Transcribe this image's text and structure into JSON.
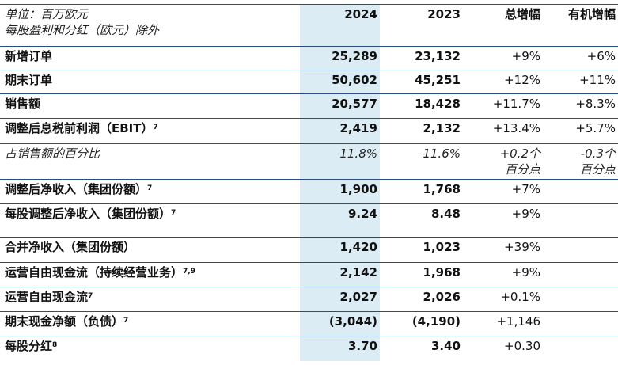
{
  "header": {
    "unit_line1": "单位：百万欧元",
    "unit_line2": "每股盈利和分红（欧元）除外",
    "col_2024": "2024",
    "col_2023": "2023",
    "col_total_growth": "总增幅",
    "col_organic_growth": "有机增幅"
  },
  "rows": [
    {
      "label": "新增订单",
      "sup": "",
      "v2024": "25,289",
      "v2023": "23,132",
      "total": "+9%",
      "organic": "+6%"
    },
    {
      "label": "期末订单",
      "sup": "",
      "v2024": "50,602",
      "v2023": "45,251",
      "total": "+12%",
      "organic": "+11%"
    },
    {
      "label": "销售额",
      "sup": "",
      "v2024": "20,577",
      "v2023": "18,428",
      "total": "+11.7%",
      "organic": "+8.3%"
    },
    {
      "label": "调整后息税前利润（EBIT）",
      "sup": "7",
      "v2024": "2,419",
      "v2023": "2,132",
      "total": "+13.4%",
      "organic": "+5.7%"
    },
    {
      "label": "占销售额的百分比",
      "sup": "",
      "v2024": "11.8%",
      "v2023": "11.6%",
      "total": "+0.2个",
      "total2": "百分点",
      "organic": "-0.3个",
      "organic2": "百分点"
    },
    {
      "label": "调整后净收入（集团份额）",
      "sup": "7",
      "v2024": "1,900",
      "v2023": "1,768",
      "total": "+7%",
      "organic": ""
    },
    {
      "label": "每股调整后净收入（集团份额）",
      "sup": "7",
      "v2024": "9.24",
      "v2023": "8.48",
      "total": "+9%",
      "organic": ""
    },
    {
      "label": "合并净收入（集团份额）",
      "sup": "",
      "v2024": "1,420",
      "v2023": "1,023",
      "total": "+39%",
      "organic": ""
    },
    {
      "label": "运营自由现金流（持续经营业务）",
      "sup": "7,9",
      "v2024": "2,142",
      "v2023": "1,968",
      "total": "+9%",
      "organic": ""
    },
    {
      "label": "运营自由现金流",
      "sup": "7",
      "v2024": "2,027",
      "v2023": "2,026",
      "total": "+0.1%",
      "organic": ""
    },
    {
      "label": "期末现金净额（负债）",
      "sup": "7",
      "v2024": "(3,044)",
      "v2023": "(4,190)",
      "total": "+1,146",
      "organic": ""
    },
    {
      "label": "每股分红",
      "sup": "8",
      "v2024": "3.70",
      "v2023": "3.40",
      "total": "+0.30",
      "organic": ""
    }
  ],
  "colors": {
    "highlight": "#dcecf5",
    "rule": "#2b4c7e"
  }
}
